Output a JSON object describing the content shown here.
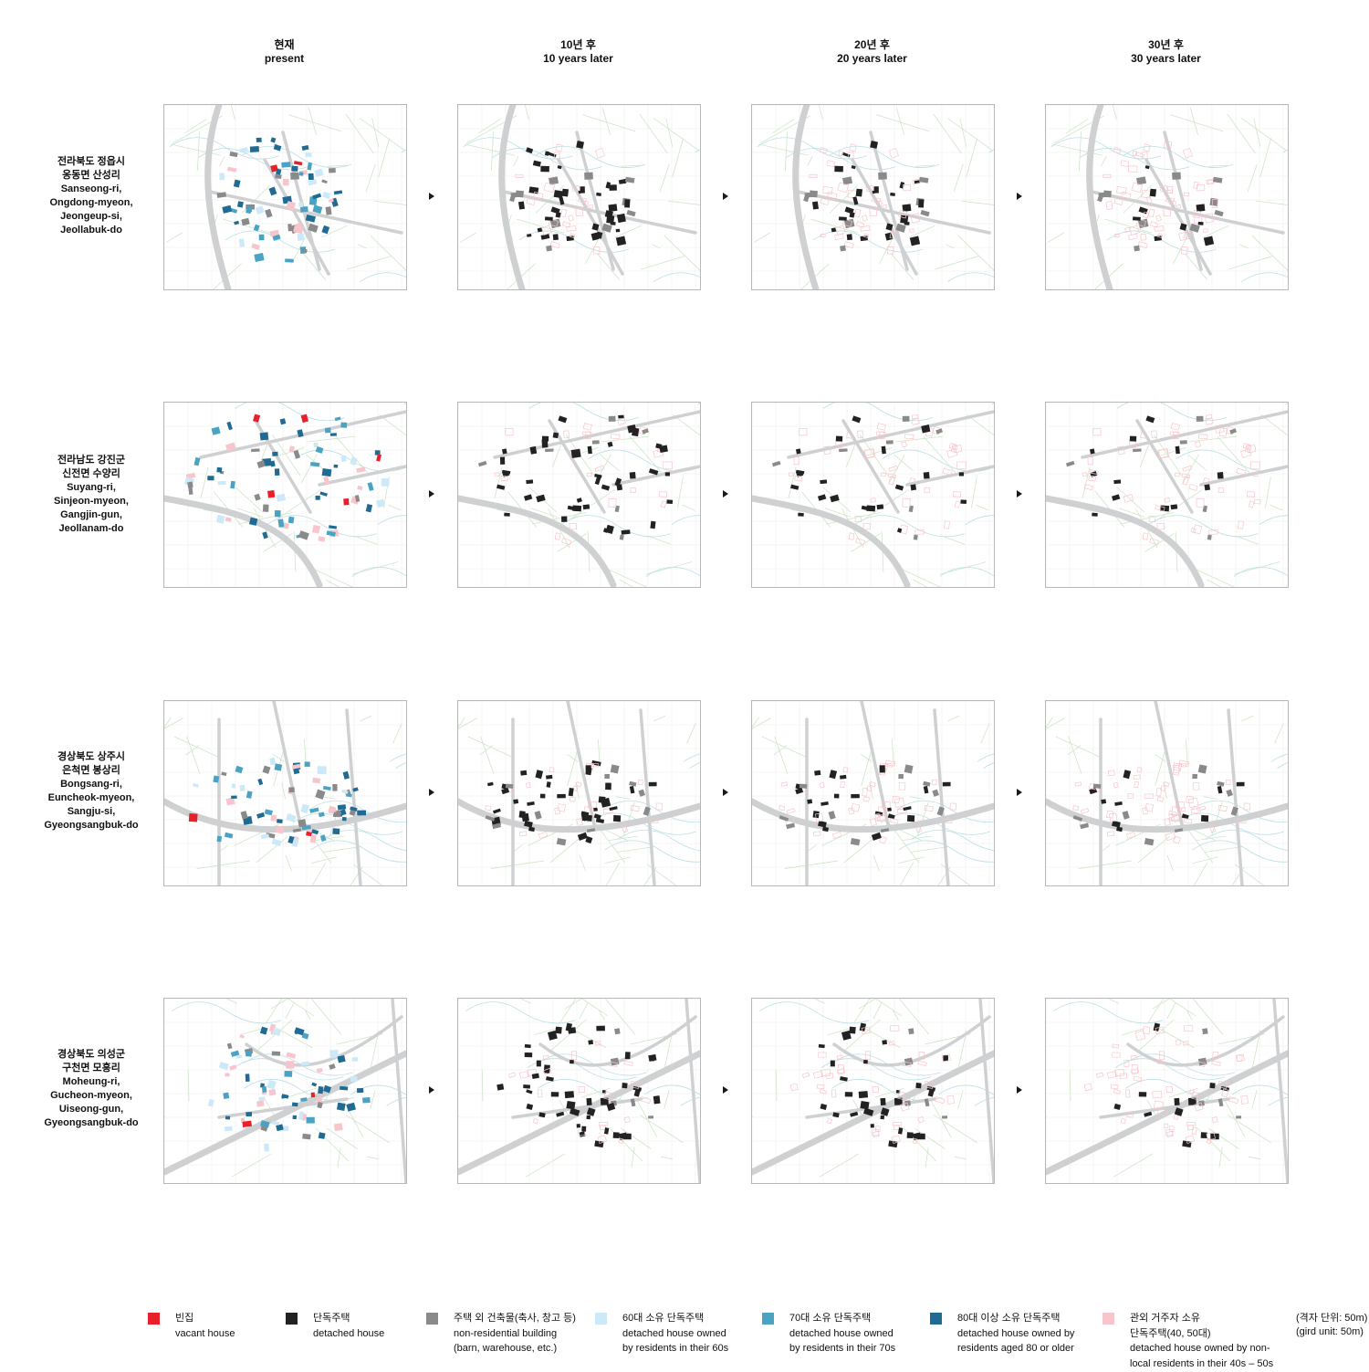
{
  "columns": [
    {
      "ko": "현재",
      "en": "present"
    },
    {
      "ko": "10년 후",
      "en": "10 years later"
    },
    {
      "ko": "20년 후",
      "en": "20 years later"
    },
    {
      "ko": "30년 후",
      "en": "30 years later"
    }
  ],
  "rows": [
    {
      "lines": [
        "전라북도 정읍시",
        "옹동면 산성리",
        "Sanseong-ri,",
        "Ongdong-myeon,",
        "Jeongeup-si,",
        "Jeollabuk-do"
      ]
    },
    {
      "lines": [
        "전라남도 강진군",
        "신전면 수양리",
        "Suyang-ri,",
        "Sinjeon-myeon,",
        "Gangjin-gun,",
        "Jeollanam-do"
      ]
    },
    {
      "lines": [
        "경상북도 상주시",
        "은척면 봉상리",
        "Bongsang-ri,",
        "Euncheok-myeon,",
        "Sangju-si,",
        "Gyeongsangbuk-do"
      ]
    },
    {
      "lines": [
        "경상북도 의성군",
        "구천면 모흥리",
        "Moheung-ri,",
        "Gucheon-myeon,",
        "Uiseong-gun,",
        "Gyeongsangbuk-do"
      ]
    }
  ],
  "legend": [
    {
      "color": "#e8202a",
      "lines": [
        "빈집",
        "vacant house"
      ]
    },
    {
      "color": "#222222",
      "lines": [
        "단독주택",
        "detached house"
      ]
    },
    {
      "color": "#8a8a8a",
      "lines": [
        "주택 외 건축물(축사, 창고 등)",
        "non-residential building",
        "(barn, warehouse, etc.)"
      ]
    },
    {
      "color": "#cde9f8",
      "lines": [
        "60대 소유 단독주택",
        "detached house owned",
        "by residents in their 60s"
      ]
    },
    {
      "color": "#4aa3c3",
      "lines": [
        "70대 소유 단독주택",
        "detached house owned",
        "by residents in their 70s"
      ]
    },
    {
      "color": "#1f6b93",
      "lines": [
        "80대 이상 소유 단독주택",
        "detached house owned by",
        "residents aged 80 or older"
      ]
    },
    {
      "color": "#f7c6cc",
      "lines": [
        "관외 거주자 소유",
        "단독주택(40, 50대)",
        "detached house owned by non-",
        "local residents in their 40s – 50s"
      ]
    }
  ],
  "grid_note": [
    "(격자 단위: 50m)",
    "(gird unit: 50m)"
  ],
  "map_colors": {
    "vacant": "#e8202a",
    "detached": "#222222",
    "nonres": "#8a8a8a",
    "age60": "#cde9f8",
    "age70": "#4aa3c3",
    "age80": "#1f6b93",
    "nonlocal": "#f7c6cc",
    "road": "#cfd0d2",
    "field": "#cfe6c8",
    "contour": "#bcdfe6"
  }
}
